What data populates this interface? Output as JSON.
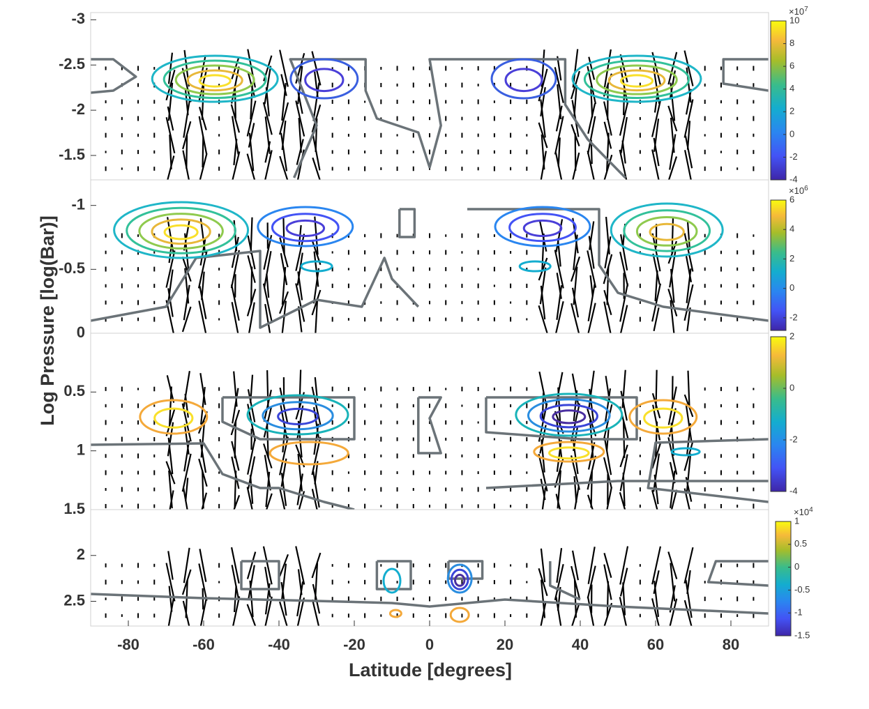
{
  "chart_data": {
    "type": "contour",
    "xlabel": "Latitude [degrees]",
    "ylabel": "Log Pressure [log(Bar)]",
    "xlim": [
      -90,
      90
    ],
    "xticks": [
      -80,
      -60,
      -40,
      -20,
      0,
      20,
      40,
      60,
      80
    ],
    "panels": [
      {
        "ylim": [
          -3.08,
          -1.23
        ],
        "yticks": [
          -3,
          -2.5,
          -2,
          -1.5
        ],
        "colorbar": {
          "lim": [
            -4,
            10
          ],
          "ticks": [
            -4,
            -2,
            0,
            2,
            4,
            6,
            8,
            10
          ],
          "scale_base": "×10",
          "scale_power": 7
        }
      },
      {
        "ylim": [
          -1.2,
          0
        ],
        "yticks": [
          -1,
          -0.5,
          0
        ],
        "colorbar": {
          "lim": [
            -2.86,
            6
          ],
          "ticks": [
            -2,
            0,
            2,
            4,
            6
          ],
          "scale_base": "×10",
          "scale_power": 6
        }
      },
      {
        "ylim": [
          0,
          1.5
        ],
        "yticks": [
          0.5,
          1,
          1.5
        ],
        "colorbar": {
          "lim": [
            -4,
            2
          ],
          "ticks": [
            -4,
            -2,
            0,
            2
          ]
        }
      },
      {
        "ylim": [
          1.5,
          2.77
        ],
        "yticks": [
          2,
          2.5
        ],
        "colorbar": {
          "lim": [
            -1.5,
            1
          ],
          "ticks": [
            -1.5,
            -1,
            -0.5,
            0,
            0.5,
            1
          ],
          "scale_base": "×10",
          "scale_power": 4
        }
      }
    ]
  }
}
